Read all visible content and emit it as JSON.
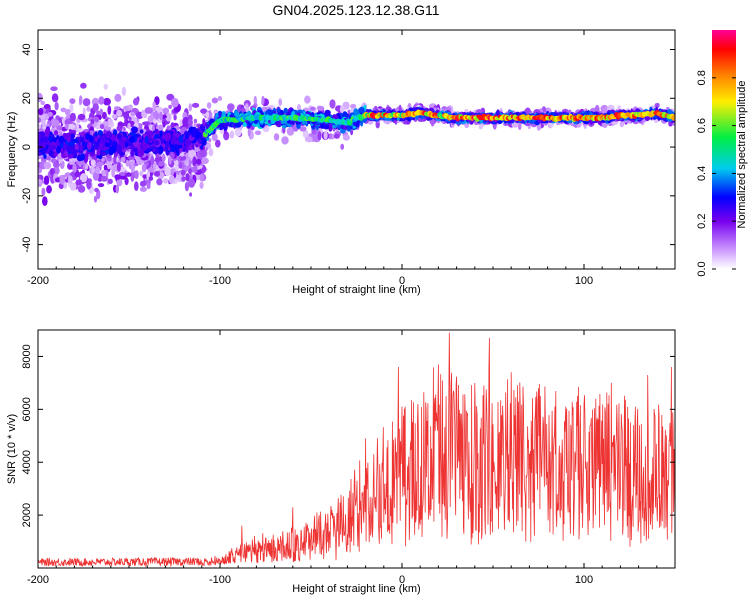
{
  "title": "GN04.2025.123.12.38.G11",
  "chart_data": [
    {
      "type": "heatmap",
      "xlabel": "Height of straight line (km)",
      "ylabel": "Frequency (Hz)",
      "xlim": [
        -200,
        150
      ],
      "ylim": [
        -50,
        48
      ],
      "xticks": [
        "-200",
        "-100",
        "0",
        "100"
      ],
      "yticks": [
        "-40",
        "-20",
        "0",
        "20",
        "40"
      ],
      "colorbar": {
        "label": "Normalized spectral amplitude",
        "range": [
          0,
          1
        ],
        "ticks": [
          "0.0",
          "0.2",
          "0.4",
          "0.6",
          "0.8"
        ]
      },
      "ridge": {
        "x": [
          -200,
          -180,
          -160,
          -140,
          -120,
          -110,
          -100,
          -80,
          -60,
          -40,
          -30,
          -20,
          -10,
          0,
          10,
          20,
          30,
          40,
          50,
          60,
          70,
          80,
          90,
          100,
          110,
          120,
          130,
          140,
          150
        ],
        "y": [
          2,
          0,
          1,
          2,
          3,
          4,
          11,
          12,
          12,
          11,
          10,
          13,
          13,
          13,
          14,
          13,
          12,
          12,
          12,
          12,
          12,
          12,
          12,
          12,
          12,
          13,
          13,
          14,
          12
        ]
      }
    },
    {
      "type": "line",
      "xlabel": "Height of straight line (km)",
      "ylabel": "SNR (10 * v/v)",
      "xlim": [
        -200,
        150
      ],
      "ylim": [
        0,
        9000
      ],
      "xticks": [
        "-200",
        "-100",
        "0",
        "100"
      ],
      "yticks": [
        "2000",
        "4000",
        "6000",
        "8000"
      ],
      "color": "#ee3333",
      "envelope": {
        "x": [
          -200,
          -110,
          -100,
          -90,
          -80,
          -70,
          -60,
          -50,
          -40,
          -30,
          -25,
          -20,
          -10,
          0,
          10,
          20,
          30,
          40,
          50,
          60,
          70,
          80,
          90,
          100,
          110,
          120,
          130,
          140,
          150
        ],
        "y": [
          180,
          200,
          300,
          500,
          700,
          800,
          900,
          1100,
          1400,
          1700,
          2300,
          2600,
          3200,
          3600,
          4000,
          4200,
          4300,
          4300,
          4200,
          4100,
          4100,
          4000,
          3900,
          3900,
          3800,
          3800,
          3600,
          3500,
          3300
        ]
      },
      "spikes": [
        {
          "x": -88,
          "y": 1600
        },
        {
          "x": -60,
          "y": 2300
        },
        {
          "x": -20,
          "y": 4900
        },
        {
          "x": -2,
          "y": 7600
        },
        {
          "x": 20,
          "y": 7700
        },
        {
          "x": 26,
          "y": 8900
        },
        {
          "x": 48,
          "y": 8700
        },
        {
          "x": 60,
          "y": 7400
        },
        {
          "x": 75,
          "y": 6800
        },
        {
          "x": 115,
          "y": 7000
        },
        {
          "x": 135,
          "y": 7300
        },
        {
          "x": 148,
          "y": 7600
        }
      ]
    }
  ]
}
